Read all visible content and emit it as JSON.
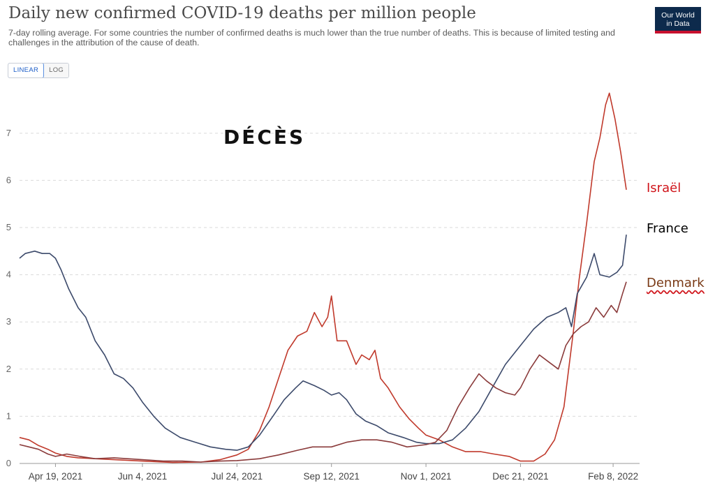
{
  "header": {
    "title": "Daily new confirmed COVID-19 deaths per million people",
    "subtitle": "7-day rolling average. For some countries the number of confirmed deaths is much lower than the true number of deaths. This is because of limited testing and challenges in the attribution of the cause of death.",
    "logo_line1": "Our World",
    "logo_line2": "in Data",
    "scale_linear": "LINEAR",
    "scale_log": "LOG"
  },
  "annotation": "DÉCÈS",
  "series_labels": {
    "israel": "Israël",
    "france": "France",
    "denmark": "Denmark"
  },
  "colors": {
    "israel": "#c0392b",
    "france": "#3c4a6b",
    "denmark": "#8a3a3a",
    "israel_label": "#d0151b",
    "grid": "#d9d9d9",
    "axis": "#666666"
  },
  "chart_data": {
    "type": "line",
    "title": "Daily new confirmed COVID-19 deaths per million people",
    "xlabel": "",
    "ylabel": "",
    "yscale": "linear",
    "ylim": [
      0,
      7.9
    ],
    "yticks": [
      0,
      1,
      2,
      3,
      4,
      5,
      6,
      7
    ],
    "xlim": [
      "2021-03-31",
      "2022-02-22"
    ],
    "xticks": [
      {
        "date": "2021-04-19",
        "label": "Apr 19, 2021"
      },
      {
        "date": "2021-06-04",
        "label": "Jun 4, 2021"
      },
      {
        "date": "2021-07-24",
        "label": "Jul 24, 2021"
      },
      {
        "date": "2021-09-12",
        "label": "Sep 12, 2021"
      },
      {
        "date": "2021-11-01",
        "label": "Nov 1, 2021"
      },
      {
        "date": "2021-12-21",
        "label": "Dec 21, 2021"
      },
      {
        "date": "2022-02-08",
        "label": "Feb 8, 2022"
      }
    ],
    "grid": "horizontal dashed",
    "legend": "line labels at right end",
    "series": [
      {
        "name": "Israël",
        "key": "israel",
        "points": [
          [
            "2021-03-31",
            0.55
          ],
          [
            "2021-04-05",
            0.5
          ],
          [
            "2021-04-10",
            0.38
          ],
          [
            "2021-04-15",
            0.3
          ],
          [
            "2021-04-19",
            0.22
          ],
          [
            "2021-04-25",
            0.15
          ],
          [
            "2021-05-01",
            0.12
          ],
          [
            "2021-05-10",
            0.1
          ],
          [
            "2021-05-20",
            0.08
          ],
          [
            "2021-06-04",
            0.05
          ],
          [
            "2021-06-20",
            0.02
          ],
          [
            "2021-07-05",
            0.03
          ],
          [
            "2021-07-15",
            0.08
          ],
          [
            "2021-07-24",
            0.18
          ],
          [
            "2021-07-30",
            0.3
          ],
          [
            "2021-08-05",
            0.7
          ],
          [
            "2021-08-10",
            1.2
          ],
          [
            "2021-08-15",
            1.8
          ],
          [
            "2021-08-20",
            2.4
          ],
          [
            "2021-08-25",
            2.7
          ],
          [
            "2021-08-30",
            2.8
          ],
          [
            "2021-09-03",
            3.2
          ],
          [
            "2021-09-07",
            2.9
          ],
          [
            "2021-09-10",
            3.1
          ],
          [
            "2021-09-12",
            3.55
          ],
          [
            "2021-09-15",
            2.6
          ],
          [
            "2021-09-20",
            2.6
          ],
          [
            "2021-09-25",
            2.1
          ],
          [
            "2021-09-28",
            2.3
          ],
          [
            "2021-10-02",
            2.2
          ],
          [
            "2021-10-05",
            2.4
          ],
          [
            "2021-10-08",
            1.8
          ],
          [
            "2021-10-12",
            1.6
          ],
          [
            "2021-10-18",
            1.2
          ],
          [
            "2021-10-23",
            0.95
          ],
          [
            "2021-10-28",
            0.75
          ],
          [
            "2021-11-01",
            0.6
          ],
          [
            "2021-11-08",
            0.5
          ],
          [
            "2021-11-15",
            0.35
          ],
          [
            "2021-11-22",
            0.25
          ],
          [
            "2021-11-30",
            0.25
          ],
          [
            "2021-12-07",
            0.2
          ],
          [
            "2021-12-15",
            0.15
          ],
          [
            "2021-12-21",
            0.05
          ],
          [
            "2021-12-28",
            0.05
          ],
          [
            "2022-01-03",
            0.2
          ],
          [
            "2022-01-08",
            0.5
          ],
          [
            "2022-01-13",
            1.2
          ],
          [
            "2022-01-18",
            2.8
          ],
          [
            "2022-01-21",
            3.9
          ],
          [
            "2022-01-25",
            5.1
          ],
          [
            "2022-01-29",
            6.4
          ],
          [
            "2022-02-01",
            6.9
          ],
          [
            "2022-02-04",
            7.6
          ],
          [
            "2022-02-06",
            7.85
          ],
          [
            "2022-02-09",
            7.3
          ],
          [
            "2022-02-12",
            6.6
          ],
          [
            "2022-02-15",
            5.8
          ]
        ]
      },
      {
        "name": "France",
        "key": "france",
        "points": [
          [
            "2021-03-31",
            4.35
          ],
          [
            "2021-04-03",
            4.45
          ],
          [
            "2021-04-08",
            4.5
          ],
          [
            "2021-04-12",
            4.45
          ],
          [
            "2021-04-16",
            4.45
          ],
          [
            "2021-04-19",
            4.35
          ],
          [
            "2021-04-22",
            4.1
          ],
          [
            "2021-04-26",
            3.7
          ],
          [
            "2021-05-01",
            3.3
          ],
          [
            "2021-05-05",
            3.1
          ],
          [
            "2021-05-10",
            2.6
          ],
          [
            "2021-05-15",
            2.3
          ],
          [
            "2021-05-20",
            1.9
          ],
          [
            "2021-05-25",
            1.8
          ],
          [
            "2021-05-30",
            1.6
          ],
          [
            "2021-06-04",
            1.3
          ],
          [
            "2021-06-10",
            1.0
          ],
          [
            "2021-06-16",
            0.75
          ],
          [
            "2021-06-24",
            0.55
          ],
          [
            "2021-07-02",
            0.45
          ],
          [
            "2021-07-10",
            0.35
          ],
          [
            "2021-07-18",
            0.3
          ],
          [
            "2021-07-24",
            0.28
          ],
          [
            "2021-07-30",
            0.35
          ],
          [
            "2021-08-05",
            0.6
          ],
          [
            "2021-08-12",
            1.0
          ],
          [
            "2021-08-18",
            1.35
          ],
          [
            "2021-08-24",
            1.6
          ],
          [
            "2021-08-28",
            1.75
          ],
          [
            "2021-09-03",
            1.65
          ],
          [
            "2021-09-08",
            1.55
          ],
          [
            "2021-09-12",
            1.45
          ],
          [
            "2021-09-16",
            1.5
          ],
          [
            "2021-09-20",
            1.35
          ],
          [
            "2021-09-25",
            1.05
          ],
          [
            "2021-09-30",
            0.9
          ],
          [
            "2021-10-06",
            0.8
          ],
          [
            "2021-10-12",
            0.65
          ],
          [
            "2021-10-20",
            0.55
          ],
          [
            "2021-10-27",
            0.45
          ],
          [
            "2021-11-01",
            0.42
          ],
          [
            "2021-11-08",
            0.42
          ],
          [
            "2021-11-15",
            0.5
          ],
          [
            "2021-11-22",
            0.75
          ],
          [
            "2021-11-29",
            1.1
          ],
          [
            "2021-12-06",
            1.6
          ],
          [
            "2021-12-13",
            2.1
          ],
          [
            "2021-12-21",
            2.5
          ],
          [
            "2021-12-28",
            2.85
          ],
          [
            "2022-01-04",
            3.1
          ],
          [
            "2022-01-10",
            3.2
          ],
          [
            "2022-01-14",
            3.3
          ],
          [
            "2022-01-17",
            2.9
          ],
          [
            "2022-01-20",
            3.6
          ],
          [
            "2022-01-25",
            3.95
          ],
          [
            "2022-01-29",
            4.45
          ],
          [
            "2022-02-01",
            4.0
          ],
          [
            "2022-02-06",
            3.95
          ],
          [
            "2022-02-10",
            4.05
          ],
          [
            "2022-02-13",
            4.2
          ],
          [
            "2022-02-15",
            4.85
          ]
        ]
      },
      {
        "name": "Denmark",
        "key": "denmark",
        "points": [
          [
            "2021-03-31",
            0.4
          ],
          [
            "2021-04-05",
            0.35
          ],
          [
            "2021-04-10",
            0.3
          ],
          [
            "2021-04-15",
            0.2
          ],
          [
            "2021-04-19",
            0.15
          ],
          [
            "2021-04-25",
            0.2
          ],
          [
            "2021-05-02",
            0.15
          ],
          [
            "2021-05-10",
            0.1
          ],
          [
            "2021-05-20",
            0.12
          ],
          [
            "2021-06-04",
            0.08
          ],
          [
            "2021-06-15",
            0.05
          ],
          [
            "2021-06-25",
            0.05
          ],
          [
            "2021-07-05",
            0.03
          ],
          [
            "2021-07-15",
            0.05
          ],
          [
            "2021-07-24",
            0.06
          ],
          [
            "2021-08-05",
            0.1
          ],
          [
            "2021-08-15",
            0.18
          ],
          [
            "2021-08-25",
            0.28
          ],
          [
            "2021-09-02",
            0.35
          ],
          [
            "2021-09-12",
            0.35
          ],
          [
            "2021-09-20",
            0.45
          ],
          [
            "2021-09-28",
            0.5
          ],
          [
            "2021-10-06",
            0.5
          ],
          [
            "2021-10-14",
            0.45
          ],
          [
            "2021-10-22",
            0.35
          ],
          [
            "2021-11-01",
            0.4
          ],
          [
            "2021-11-06",
            0.45
          ],
          [
            "2021-11-12",
            0.7
          ],
          [
            "2021-11-18",
            1.2
          ],
          [
            "2021-11-24",
            1.6
          ],
          [
            "2021-11-29",
            1.9
          ],
          [
            "2021-12-03",
            1.75
          ],
          [
            "2021-12-08",
            1.6
          ],
          [
            "2021-12-13",
            1.5
          ],
          [
            "2021-12-18",
            1.45
          ],
          [
            "2021-12-21",
            1.6
          ],
          [
            "2021-12-26",
            2.0
          ],
          [
            "2021-12-31",
            2.3
          ],
          [
            "2022-01-05",
            2.15
          ],
          [
            "2022-01-10",
            2.0
          ],
          [
            "2022-01-14",
            2.5
          ],
          [
            "2022-01-18",
            2.75
          ],
          [
            "2022-01-22",
            2.9
          ],
          [
            "2022-01-26",
            3.0
          ],
          [
            "2022-01-30",
            3.3
          ],
          [
            "2022-02-03",
            3.1
          ],
          [
            "2022-02-07",
            3.35
          ],
          [
            "2022-02-10",
            3.2
          ],
          [
            "2022-02-13",
            3.6
          ],
          [
            "2022-02-15",
            3.85
          ]
        ]
      }
    ]
  }
}
